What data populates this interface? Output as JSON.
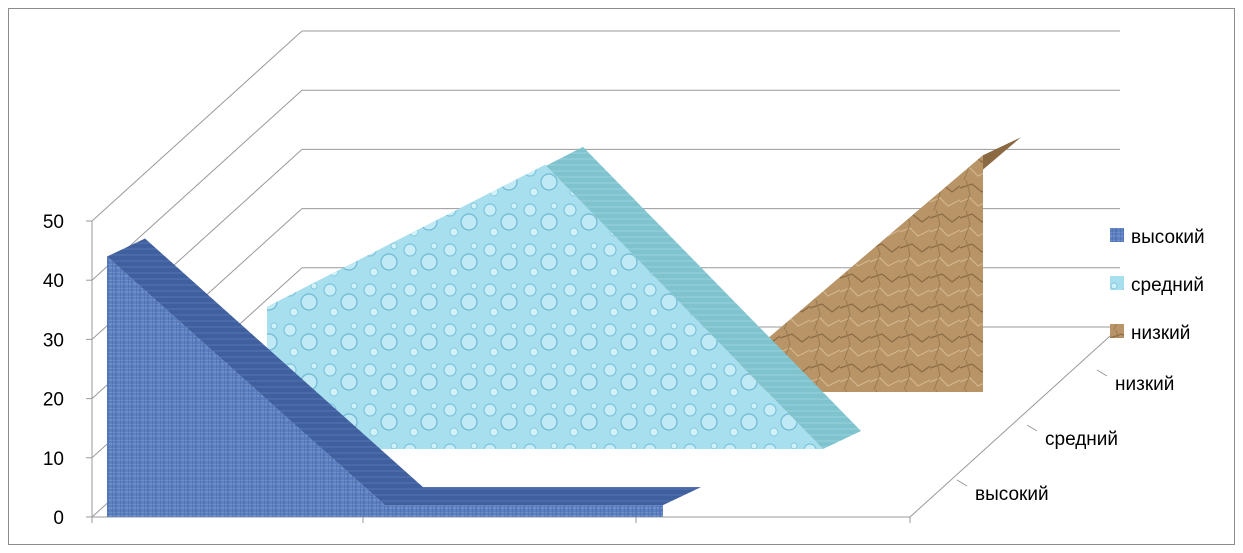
{
  "chart_data": {
    "type": "area",
    "style": "3d",
    "categories": [
      "",
      "",
      ""
    ],
    "series": [
      {
        "name": "высокий",
        "values": [
          44,
          2,
          2
        ],
        "color": "#5b7fbf"
      },
      {
        "name": "средний",
        "values": [
          24,
          48,
          0
        ],
        "color": "#9fdbe8"
      },
      {
        "name": "низкий",
        "values": [
          0,
          0,
          40
        ],
        "color": "#b08a5c"
      }
    ],
    "y_ticks": [
      "0",
      "10",
      "20",
      "30",
      "40",
      "50"
    ],
    "ylim": [
      0,
      50
    ],
    "depth_labels": [
      "высокий",
      "средний",
      "низкий"
    ],
    "legend": [
      "высокий",
      "средний",
      "низкий"
    ],
    "legend_position": "right",
    "grid": true
  }
}
